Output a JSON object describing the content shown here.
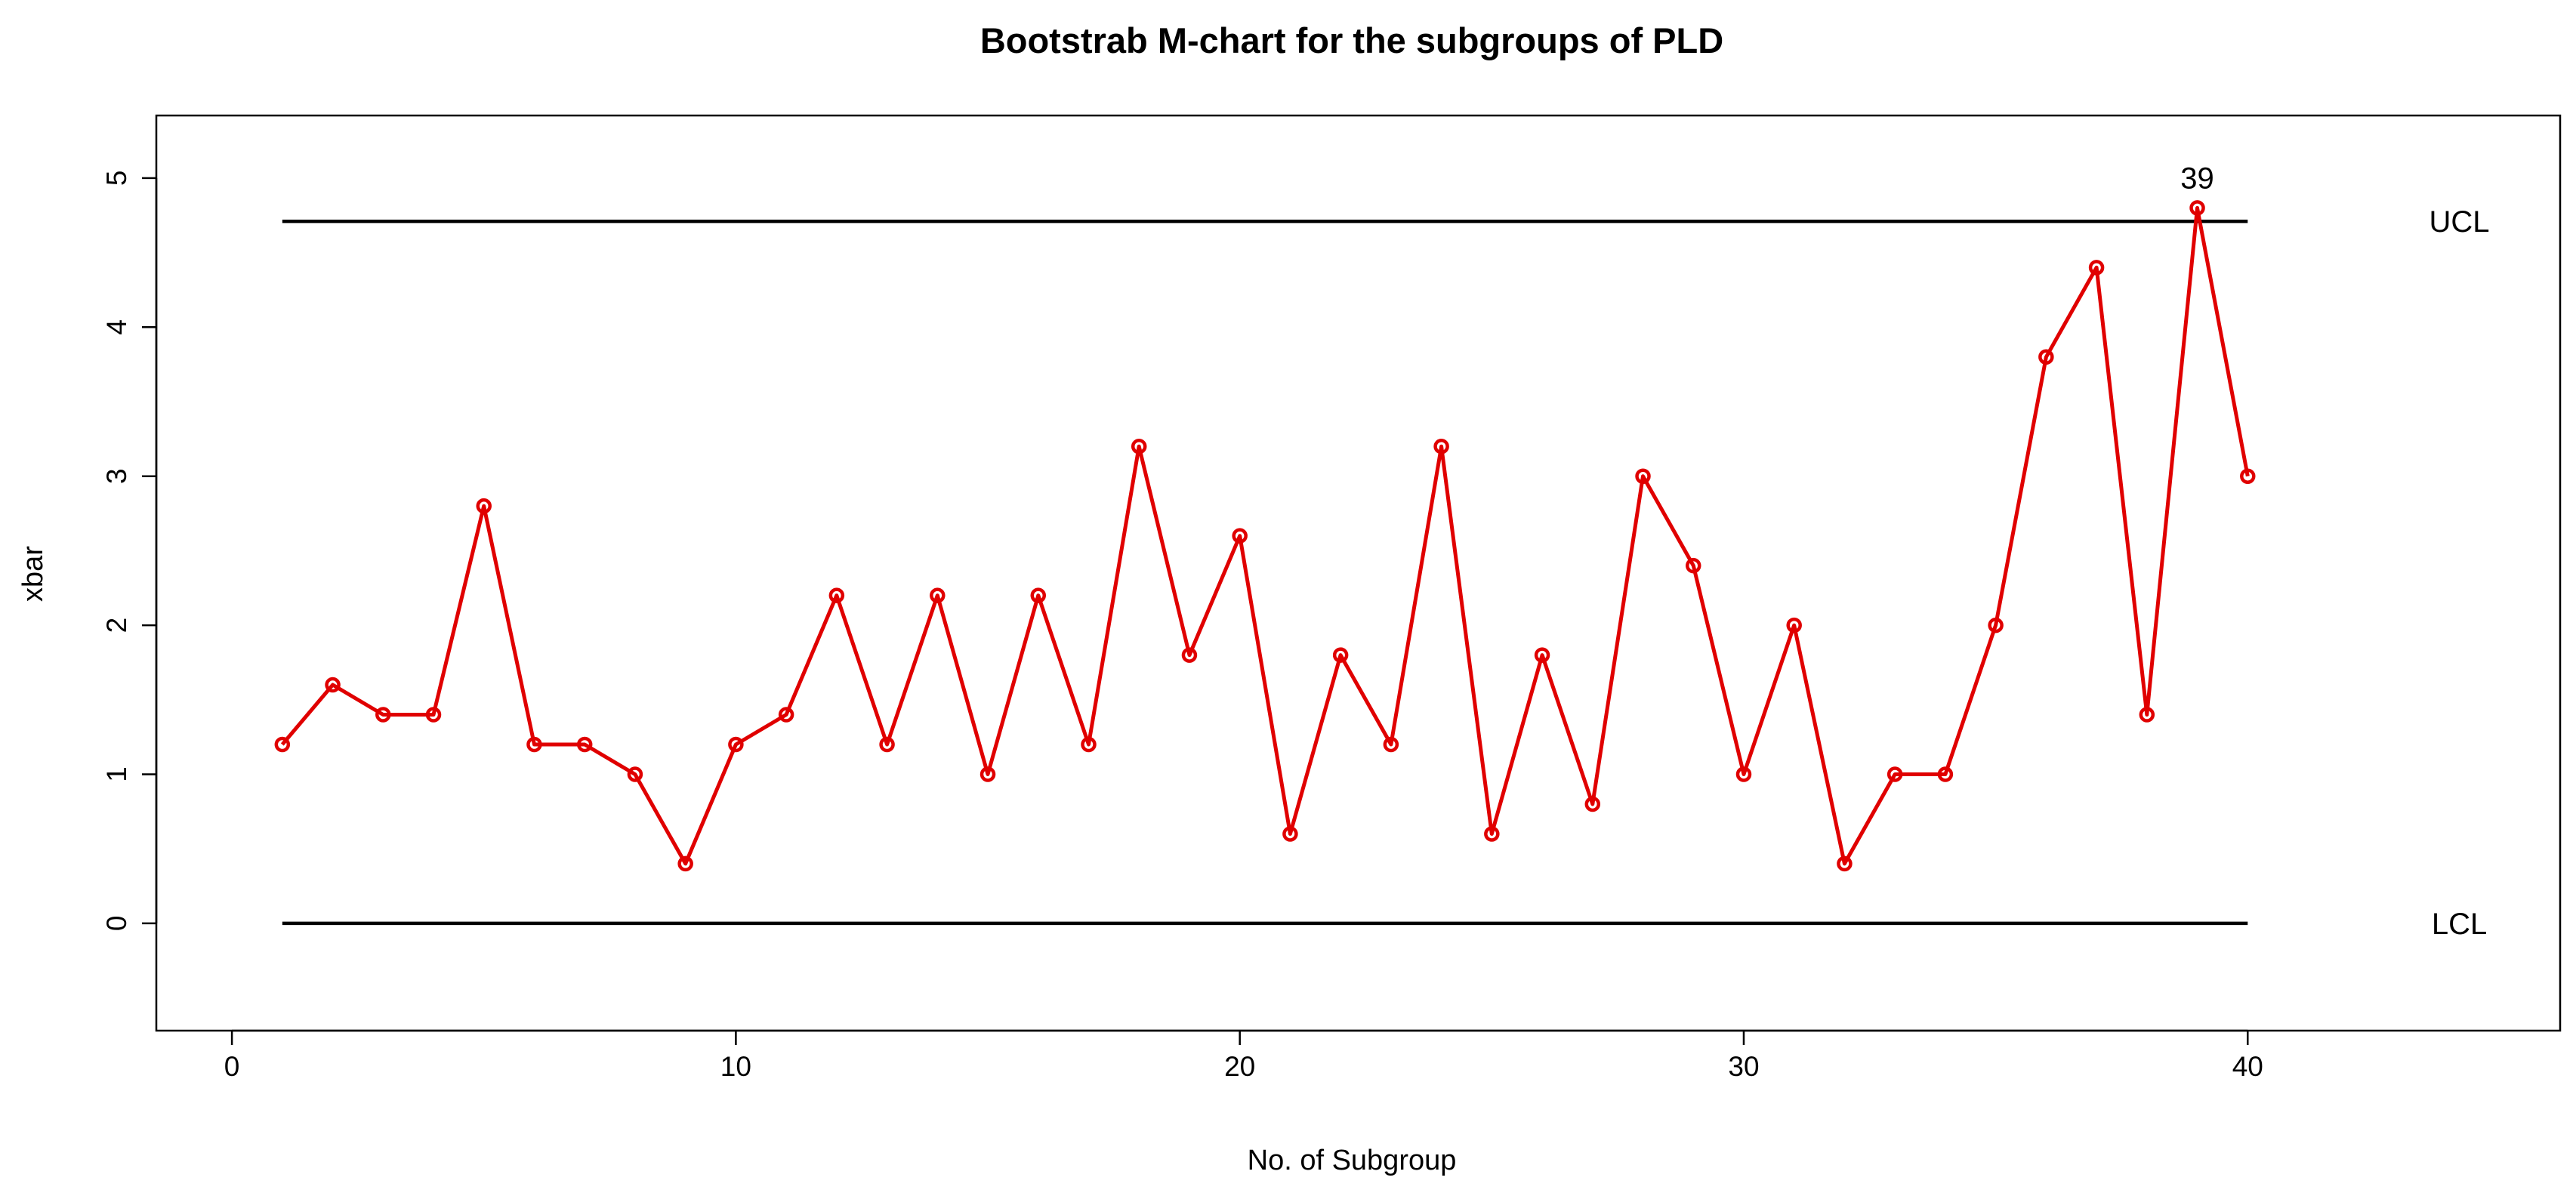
{
  "chart_data": {
    "type": "line",
    "title": "Bootstrab M-chart for the subgroups of PLD",
    "xlabel": "No. of Subgroup",
    "ylabel": "xbar",
    "xlim": [
      -1.5,
      46.2
    ],
    "ylim": [
      -0.72,
      5.42
    ],
    "xticks": [
      0,
      10,
      20,
      30,
      40
    ],
    "yticks": [
      0,
      1,
      2,
      3,
      4,
      5
    ],
    "grid": false,
    "colors": {
      "series": "#e00000",
      "limits": "#000000",
      "axes": "#000000"
    },
    "series": [
      {
        "x": [
          1,
          2,
          3,
          4,
          5,
          6,
          7,
          8,
          9,
          10,
          11,
          12,
          13,
          14,
          15,
          16,
          17,
          18,
          19,
          20,
          21,
          22,
          23,
          24,
          25,
          26,
          27,
          28,
          29,
          30,
          31,
          32,
          33,
          34,
          35,
          36,
          37,
          38,
          39,
          40
        ],
        "values": [
          1.2,
          1.6,
          1.4,
          1.4,
          2.8,
          1.2,
          1.2,
          1.0,
          0.4,
          1.2,
          1.4,
          2.2,
          1.2,
          2.2,
          1.0,
          2.2,
          1.2,
          3.2,
          1.8,
          2.6,
          0.6,
          1.8,
          1.2,
          3.2,
          0.6,
          1.8,
          0.8,
          3.0,
          2.4,
          1.0,
          2.0,
          0.4,
          1.0,
          1.0,
          2.0,
          3.8,
          4.4,
          1.4,
          4.8,
          3.0
        ]
      }
    ],
    "control_limits": [
      {
        "label": "UCL",
        "value": 4.71,
        "x_start": 1,
        "x_end": 40
      },
      {
        "label": "LCL",
        "value": 0.0,
        "x_start": 1,
        "x_end": 40
      }
    ],
    "annotations": [
      {
        "text": "39",
        "x": 39,
        "y": 4.8
      }
    ]
  }
}
